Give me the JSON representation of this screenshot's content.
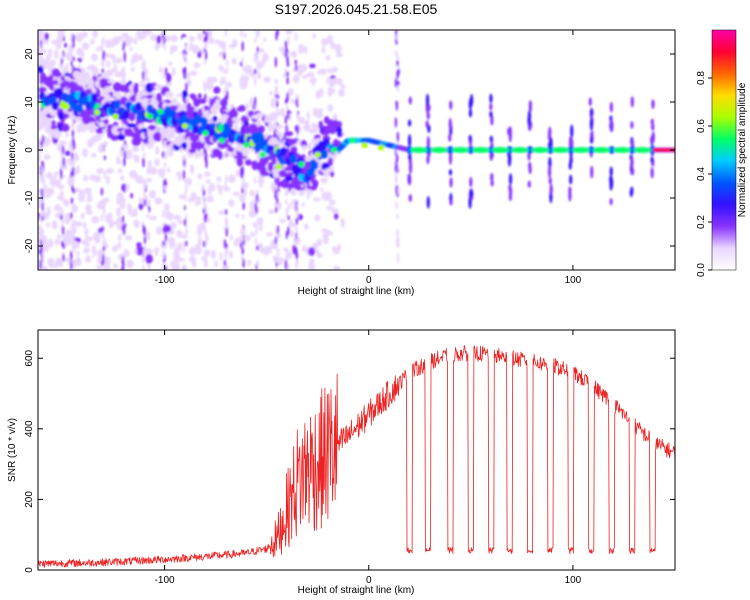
{
  "title": "S197.2026.045.21.58.E05",
  "colors": {
    "line": "#ee2222",
    "axis": "#000000",
    "background": "#ffffff"
  },
  "chart_data": [
    {
      "type": "heatmap",
      "name": "spectrogram",
      "xlabel": "Height of straight line (km)",
      "ylabel": "Frequency (Hz)",
      "xlim": [
        -162,
        150
      ],
      "ylim": [
        -25,
        25
      ],
      "x_ticks": [
        -100,
        0,
        100
      ],
      "y_ticks": [
        20,
        10,
        0,
        -10,
        -20
      ],
      "x_tick_labels": [
        "-100",
        "0",
        "100"
      ],
      "y_tick_labels": [
        "20",
        "10",
        "0",
        "-10",
        "-20"
      ],
      "ridge": [
        [
          -160,
          11
        ],
        [
          -140,
          10
        ],
        [
          -120,
          8
        ],
        [
          -100,
          7
        ],
        [
          -80,
          5
        ],
        [
          -60,
          3
        ],
        [
          -50,
          1
        ],
        [
          -40,
          -2
        ],
        [
          -30,
          -5
        ],
        [
          -25,
          -1
        ],
        [
          -20,
          1
        ],
        [
          -15,
          0
        ],
        [
          -10,
          2
        ],
        [
          0,
          2
        ],
        [
          10,
          1
        ],
        [
          20,
          0
        ],
        [
          150,
          0
        ]
      ],
      "periodic_spikes_x": [
        20,
        29,
        40,
        50,
        60,
        69,
        79,
        89,
        99,
        109,
        119,
        129,
        139
      ],
      "colorbar": {
        "label": "Normalized spectral amplitude",
        "range": [
          0,
          1
        ],
        "ticks": [
          0.0,
          0.2,
          0.4,
          0.6,
          0.8
        ],
        "tick_labels": [
          "0.0",
          "0.2",
          "0.4",
          "0.6",
          "0.8"
        ],
        "colormap": [
          "#ffffff",
          "#e9d6ff",
          "#8833ff",
          "#3311ff",
          "#0055ff",
          "#00ccff",
          "#00ff66",
          "#aaff00",
          "#ffdd00",
          "#ff6600",
          "#ff0033",
          "#ff00aa"
        ]
      }
    },
    {
      "type": "line",
      "name": "snr",
      "xlabel": "Height of straight line (km)",
      "ylabel": "SNR (10 * v/v)",
      "xlim": [
        -162,
        150
      ],
      "ylim": [
        0,
        680
      ],
      "x_ticks": [
        -100,
        0,
        100
      ],
      "y_ticks": [
        0,
        200,
        400,
        600
      ],
      "x_tick_labels": [
        "-100",
        "0",
        "100"
      ],
      "y_tick_labels": [
        "0",
        "200",
        "400",
        "600"
      ],
      "envelope": [
        [
          -162,
          18
        ],
        [
          -140,
          20
        ],
        [
          -120,
          24
        ],
        [
          -100,
          30
        ],
        [
          -80,
          38
        ],
        [
          -60,
          48
        ],
        [
          -50,
          60
        ],
        [
          -45,
          90
        ],
        [
          -40,
          170
        ],
        [
          -35,
          250
        ],
        [
          -30,
          290
        ],
        [
          -25,
          300
        ],
        [
          -20,
          330
        ],
        [
          -10,
          380
        ],
        [
          0,
          440
        ],
        [
          10,
          500
        ],
        [
          20,
          560
        ],
        [
          30,
          590
        ],
        [
          40,
          610
        ],
        [
          50,
          615
        ],
        [
          60,
          610
        ],
        [
          70,
          600
        ],
        [
          80,
          590
        ],
        [
          90,
          580
        ],
        [
          100,
          560
        ],
        [
          110,
          520
        ],
        [
          120,
          470
        ],
        [
          130,
          410
        ],
        [
          140,
          360
        ],
        [
          150,
          330
        ]
      ],
      "dropouts_x": [
        20,
        29,
        40,
        50,
        60,
        69,
        79,
        89,
        99,
        109,
        119,
        129,
        139
      ],
      "dropout_level": 55
    }
  ]
}
